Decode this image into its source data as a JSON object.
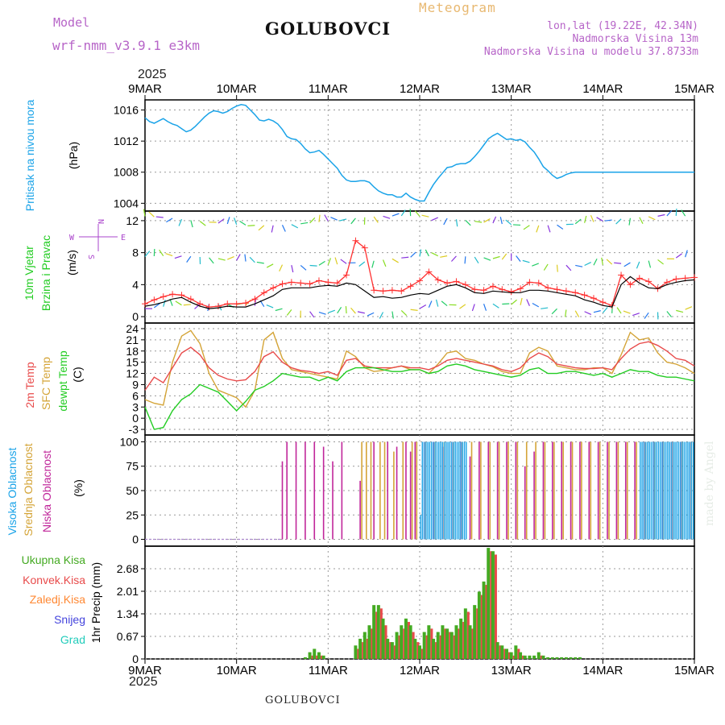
{
  "header": {
    "model_label": "Model",
    "model_name": "wrf-nmm_v3.9.1 e3km",
    "station": "GOLUBOVCI",
    "product": "Meteogram",
    "coords": "lon,lat (19.22E, 42.34N)",
    "altitude": "Nadmorska Visina 13m",
    "model_altitude": "Nadmorska Visina u modelu 37.8733m",
    "year_top": "2025",
    "year_bottom": "2025",
    "footer_station": "GOLUBOVCI",
    "credit": "made by Angel"
  },
  "colors": {
    "pressure": "#1aa3e8",
    "temp2m": "#e84a4a",
    "sfc": "#d4a437",
    "dewpt": "#22cc22",
    "wind_speed": "#000000",
    "gust": "#ff3030",
    "high_cloud": "#1aa3e8",
    "mid_cloud": "#d4a437",
    "low_cloud": "#c0269a",
    "precip_total": "#44aa22",
    "precip_conv": "#e84a4a",
    "precip_frz": "#ff8833",
    "precip_snow": "#4444dd",
    "precip_grad": "#22ccbb",
    "wind_label_color": "#22cc22",
    "compass_color": "#aa44cc"
  },
  "chart_data": [
    {
      "type": "line",
      "id": "pressure",
      "ylabel_lines": [
        "Pritisak na nivou mora",
        "(hPa)"
      ],
      "x_label": "day",
      "x": [
        0,
        0.05,
        0.1,
        0.15,
        0.2,
        0.25,
        0.3,
        0.35,
        0.4,
        0.45,
        0.5,
        0.55,
        0.6,
        0.65,
        0.7,
        0.75,
        0.8,
        0.85,
        0.9,
        0.95,
        1.0,
        1.05,
        1.1,
        1.15,
        1.2,
        1.25,
        1.3,
        1.35,
        1.4,
        1.45,
        1.5,
        1.55,
        1.6,
        1.65,
        1.7,
        1.75,
        1.8,
        1.85,
        1.9,
        1.95,
        2.0,
        2.05,
        2.1,
        2.15,
        2.2,
        2.25,
        2.3,
        2.35,
        2.4,
        2.45,
        2.5,
        2.55,
        2.6,
        2.65,
        2.7,
        2.75,
        2.8,
        2.85,
        2.9,
        2.95,
        3.0,
        3.05,
        3.1,
        3.15,
        3.2,
        3.25,
        3.3,
        3.35,
        3.4,
        3.45,
        3.5,
        3.55,
        3.6,
        3.65,
        3.7,
        3.75,
        3.8,
        3.85,
        3.9,
        3.95,
        4.0,
        4.05,
        4.1,
        4.15,
        4.2,
        4.25,
        4.3,
        4.35,
        4.4,
        4.45,
        4.5,
        4.55,
        4.6,
        4.65,
        4.7,
        4.75,
        4.8,
        4.85,
        4.9,
        4.95,
        5.0,
        5.05,
        5.1,
        5.15,
        5.2,
        5.25,
        5.3,
        5.35,
        5.4,
        5.45,
        5.5,
        5.55,
        5.6,
        5.65,
        5.7,
        5.75,
        5.8,
        5.85,
        5.9,
        5.95,
        6.0
      ],
      "values": [
        1015.0,
        1014.5,
        1014.3,
        1014.6,
        1014.9,
        1014.5,
        1014.2,
        1014.0,
        1013.6,
        1013.2,
        1013.4,
        1013.9,
        1014.5,
        1015.1,
        1015.6,
        1015.9,
        1015.8,
        1015.6,
        1015.8,
        1016.2,
        1016.5,
        1016.7,
        1016.6,
        1016.0,
        1015.4,
        1014.7,
        1014.6,
        1014.8,
        1014.6,
        1014.2,
        1013.5,
        1012.6,
        1012.3,
        1012.2,
        1011.7,
        1011.0,
        1010.5,
        1010.6,
        1010.8,
        1010.3,
        1009.7,
        1009.1,
        1008.5,
        1007.6,
        1007.0,
        1006.8,
        1006.8,
        1006.9,
        1006.9,
        1006.7,
        1006.1,
        1005.6,
        1005.3,
        1005.1,
        1005.1,
        1004.8,
        1004.8,
        1005.3,
        1004.8,
        1004.5,
        1004.3,
        1004.3,
        1005.4,
        1006.4,
        1007.2,
        1007.9,
        1008.6,
        1008.7,
        1009.0,
        1009.1,
        1009.1,
        1009.4,
        1010.0,
        1010.7,
        1011.5,
        1012.3,
        1012.7,
        1013.0,
        1012.6,
        1012.2,
        1012.3,
        1012.1,
        1012.2,
        1011.9,
        1011.2,
        1010.6,
        1009.7,
        1008.7,
        1008.2,
        1007.6,
        1007.2,
        1007.4,
        1007.7,
        1007.9,
        1008.0,
        1008.0,
        1008.0,
        1008.0,
        1008.0,
        1008.0,
        1008.0,
        1008.0,
        1008.0,
        1008.0,
        1008.0,
        1008.0,
        1008.0,
        1008.0,
        1008.0,
        1008.0,
        1008.0,
        1008.0,
        1008.0,
        1008.0,
        1008.0,
        1008.0,
        1008.0,
        1008.0,
        1008.0,
        1008.0,
        1008.0
      ],
      "yticks": [
        1004,
        1008,
        1012,
        1016
      ],
      "ylim": [
        1003.0,
        1017.3
      ]
    },
    {
      "type": "line",
      "id": "wind",
      "ylabel_lines": [
        "10m Vjetar",
        "Brzina i Pravac",
        "(m/s)"
      ],
      "compass": [
        "N",
        "E",
        "S",
        "W"
      ],
      "speed_x": [
        0,
        0.1,
        0.2,
        0.3,
        0.4,
        0.5,
        0.6,
        0.7,
        0.8,
        0.9,
        1.0,
        1.1,
        1.2,
        1.3,
        1.4,
        1.5,
        1.6,
        1.7,
        1.8,
        1.9,
        2.0,
        2.1,
        2.2,
        2.3,
        2.4,
        2.5,
        2.6,
        2.7,
        2.8,
        2.9,
        3.0,
        3.1,
        3.2,
        3.3,
        3.4,
        3.5,
        3.6,
        3.7,
        3.8,
        3.9,
        4.0,
        4.1,
        4.2,
        4.3,
        4.4,
        4.5,
        4.6,
        4.7,
        4.8,
        4.9,
        5.0,
        5.1,
        5.2,
        5.3,
        5.4,
        5.5,
        5.6,
        5.7,
        5.8,
        5.9,
        6.0
      ],
      "speed_values": [
        1.3,
        1.5,
        1.8,
        2.2,
        2.4,
        1.8,
        1.3,
        1.0,
        1.1,
        1.3,
        1.2,
        1.2,
        1.6,
        2.1,
        2.6,
        3.4,
        3.6,
        3.6,
        3.6,
        3.8,
        3.9,
        3.8,
        4.2,
        4.0,
        3.2,
        2.4,
        2.5,
        2.3,
        2.4,
        2.7,
        2.9,
        2.8,
        3.3,
        3.8,
        4.0,
        3.6,
        3.0,
        2.9,
        3.2,
        3.1,
        3.0,
        3.0,
        3.3,
        3.3,
        3.2,
        3.0,
        2.8,
        2.6,
        2.1,
        1.8,
        1.4,
        1.2,
        4.0,
        5.0,
        4.2,
        3.6,
        3.5,
        4.0,
        4.3,
        4.5,
        4.6
      ],
      "gust_values": [
        1.6,
        2.1,
        2.5,
        2.8,
        2.7,
        2.2,
        1.6,
        1.2,
        1.3,
        1.6,
        1.6,
        1.7,
        2.2,
        3.0,
        3.6,
        4.1,
        4.3,
        4.2,
        4.1,
        4.5,
        4.3,
        4.2,
        5.2,
        9.5,
        8.6,
        3.3,
        3.2,
        3.3,
        3.2,
        3.8,
        4.5,
        5.6,
        4.6,
        4.2,
        4.4,
        4.0,
        3.4,
        3.3,
        3.8,
        3.4,
        3.1,
        3.5,
        4.3,
        4.2,
        3.6,
        3.4,
        3.2,
        3.0,
        2.7,
        2.3,
        1.8,
        1.4,
        5.2,
        4.0,
        4.8,
        4.4,
        3.5,
        4.3,
        4.7,
        4.8,
        4.9
      ],
      "yticks": [
        0,
        4,
        8,
        12
      ],
      "ylim": [
        -0.8,
        13.2
      ]
    },
    {
      "type": "line",
      "id": "temperature",
      "ylabel_lines": [
        "2m Temp",
        "SFC Temp",
        "dewpt Temp",
        "(C)"
      ],
      "x": [
        0,
        0.1,
        0.2,
        0.3,
        0.4,
        0.5,
        0.6,
        0.7,
        0.8,
        0.9,
        1.0,
        1.1,
        1.2,
        1.3,
        1.4,
        1.5,
        1.6,
        1.7,
        1.8,
        1.9,
        2.0,
        2.1,
        2.2,
        2.3,
        2.4,
        2.5,
        2.6,
        2.7,
        2.8,
        2.9,
        3.0,
        3.1,
        3.2,
        3.3,
        3.4,
        3.5,
        3.6,
        3.7,
        3.8,
        3.9,
        4.0,
        4.1,
        4.2,
        4.3,
        4.4,
        4.5,
        4.6,
        4.7,
        4.8,
        4.9,
        5.0,
        5.1,
        5.2,
        5.3,
        5.4,
        5.5,
        5.6,
        5.7,
        5.8,
        5.9,
        6.0
      ],
      "temp2m": [
        7.5,
        11.0,
        9.5,
        13.5,
        17.5,
        19.0,
        17.0,
        13.5,
        11.5,
        10.5,
        10.0,
        10.3,
        12.5,
        16.5,
        17.8,
        15.0,
        13.5,
        12.8,
        12.5,
        12.0,
        12.5,
        11.5,
        15.5,
        16.0,
        14.0,
        13.5,
        13.5,
        13.5,
        14.0,
        13.5,
        13.5,
        13.0,
        14.0,
        15.5,
        16.0,
        15.5,
        15.0,
        14.5,
        14.0,
        13.0,
        12.5,
        13.5,
        16.0,
        17.5,
        16.5,
        14.5,
        14.0,
        13.5,
        13.3,
        13.3,
        13.5,
        13.0,
        16.0,
        18.5,
        20.0,
        20.5,
        19.5,
        18.0,
        16.0,
        15.5,
        14.0
      ],
      "sfc_temp": [
        5.0,
        4.0,
        3.5,
        15.0,
        22.0,
        23.5,
        20.0,
        12.0,
        7.5,
        6.5,
        5.5,
        3.0,
        7.5,
        21.0,
        23.0,
        16.0,
        13.0,
        12.5,
        12.0,
        11.5,
        11.0,
        10.5,
        18.0,
        16.5,
        13.5,
        12.5,
        12.8,
        13.5,
        14.0,
        13.0,
        13.0,
        12.0,
        14.5,
        17.5,
        18.0,
        16.0,
        15.5,
        14.5,
        13.8,
        12.5,
        12.0,
        12.0,
        17.5,
        19.0,
        18.0,
        14.0,
        13.5,
        13.0,
        13.0,
        13.5,
        13.5,
        12.0,
        17.0,
        23.0,
        21.0,
        21.5,
        17.5,
        15.0,
        14.5,
        13.5,
        12.0
      ],
      "dewpt": [
        3.0,
        -3.0,
        -2.5,
        2.0,
        5.0,
        6.5,
        9.0,
        8.0,
        7.0,
        4.5,
        2.0,
        4.5,
        7.5,
        8.5,
        10.0,
        12.0,
        11.5,
        11.0,
        11.0,
        10.0,
        11.0,
        10.0,
        12.5,
        13.5,
        13.5,
        13.5,
        13.0,
        12.5,
        12.5,
        13.0,
        13.0,
        12.0,
        12.5,
        14.0,
        14.5,
        14.0,
        13.0,
        12.5,
        12.0,
        11.5,
        11.0,
        11.5,
        13.0,
        13.5,
        12.0,
        12.0,
        12.5,
        12.5,
        12.0,
        11.5,
        12.0,
        11.0,
        12.0,
        13.0,
        12.5,
        12.5,
        11.5,
        11.0,
        11.0,
        10.5,
        10.0
      ],
      "yticks": [
        -3,
        0,
        3,
        6,
        9,
        12,
        15,
        18,
        21,
        24
      ],
      "ylim": [
        -4.5,
        25.5
      ]
    },
    {
      "type": "bar",
      "id": "cloud",
      "ylabel_lines": [
        "Visoka Oblacnost",
        "Srednja Oblacnost",
        "Niska Oblacnost",
        "(%)"
      ],
      "low_x": [
        1.5,
        1.55,
        1.65,
        1.75,
        1.85,
        1.95,
        2.05,
        2.15,
        2.35,
        2.5,
        2.65,
        2.75,
        2.85,
        2.9,
        2.95,
        3.05,
        3.15,
        3.25,
        3.35,
        3.45,
        3.55,
        3.65,
        3.75,
        3.85,
        3.95,
        4.05,
        4.15,
        4.25,
        4.35,
        4.45,
        4.55,
        4.65,
        4.75,
        4.85,
        4.95,
        5.05,
        5.15,
        5.25,
        5.35,
        5.45,
        5.55,
        5.65,
        5.75,
        5.85,
        5.95
      ],
      "low_values": [
        80,
        100,
        100,
        100,
        100,
        95,
        80,
        100,
        60,
        100,
        100,
        95,
        100,
        90,
        100,
        100,
        100,
        95,
        100,
        100,
        85,
        100,
        100,
        100,
        100,
        100,
        75,
        90,
        100,
        100,
        100,
        100,
        100,
        100,
        100,
        100,
        100,
        100,
        100,
        100,
        100,
        100,
        100,
        100,
        100
      ],
      "mid_x": [
        2.35,
        2.4,
        2.45,
        2.55,
        2.6,
        2.7,
        2.8,
        2.9,
        2.95,
        3.05,
        3.15,
        3.25,
        3.35,
        3.45,
        3.55,
        3.65,
        3.75,
        3.85,
        3.95,
        4.05,
        4.15,
        4.25,
        4.35,
        4.45,
        4.55,
        4.65,
        4.75,
        4.85,
        4.95,
        5.05,
        5.15,
        5.25,
        5.35,
        5.45,
        5.55,
        5.65,
        5.75,
        5.85,
        5.95
      ],
      "mid_values": [
        100,
        100,
        100,
        100,
        100,
        90,
        100,
        100,
        100,
        100,
        100,
        100,
        100,
        100,
        100,
        100,
        100,
        100,
        100,
        100,
        100,
        100,
        100,
        100,
        100,
        100,
        100,
        100,
        100,
        100,
        100,
        100,
        100,
        100,
        100,
        100,
        100,
        100,
        100
      ],
      "high_x": [
        3.0,
        3.02,
        3.04,
        3.06,
        3.08,
        3.1,
        3.12,
        3.14,
        3.16,
        3.18,
        3.2,
        3.22,
        3.24,
        3.26,
        3.28,
        3.3,
        3.32,
        3.34,
        3.36,
        3.38,
        3.4,
        3.42,
        3.44,
        3.46,
        3.48,
        3.5,
        5.4,
        5.42,
        5.44,
        5.46,
        5.48,
        5.5,
        5.52,
        5.54,
        5.56,
        5.58,
        5.6,
        5.62,
        5.64,
        5.66,
        5.68,
        5.7,
        5.72,
        5.74,
        5.76,
        5.78,
        5.8,
        5.82,
        5.84,
        5.86,
        5.88,
        5.9,
        5.92,
        5.94,
        5.96,
        5.98
      ],
      "high_values": [
        25,
        100,
        100,
        100,
        100,
        100,
        100,
        100,
        100,
        100,
        100,
        100,
        100,
        100,
        100,
        100,
        100,
        100,
        100,
        100,
        100,
        100,
        100,
        100,
        100,
        100,
        100,
        100,
        100,
        100,
        100,
        100,
        100,
        100,
        100,
        100,
        100,
        100,
        100,
        100,
        100,
        100,
        100,
        100,
        100,
        100,
        100,
        100,
        100,
        100,
        100,
        100,
        100,
        100,
        100,
        100
      ],
      "yticks": [
        0,
        25,
        50,
        75,
        100
      ],
      "ylim": [
        -7.0,
        107.0
      ]
    },
    {
      "type": "bar",
      "id": "precip",
      "ylabel_lines": [
        "1hr Precip (mm)"
      ],
      "legend": [
        "Ukupna Kisa",
        "Konvek.Kisa",
        "Zaledj.Kisa",
        "Snijeg",
        "Grad"
      ],
      "x": [
        1.75,
        1.8,
        1.85,
        1.9,
        1.95,
        2.3,
        2.35,
        2.4,
        2.45,
        2.5,
        2.55,
        2.6,
        2.65,
        2.7,
        2.75,
        2.8,
        2.85,
        2.9,
        2.95,
        3.0,
        3.05,
        3.1,
        3.15,
        3.2,
        3.25,
        3.3,
        3.35,
        3.4,
        3.45,
        3.5,
        3.55,
        3.6,
        3.65,
        3.7,
        3.75,
        3.8,
        3.85,
        3.9,
        3.95,
        4.0,
        4.05,
        4.1,
        4.15,
        4.2,
        4.25,
        4.3,
        4.35,
        4.4,
        4.45,
        4.5,
        4.55,
        4.6,
        4.65,
        4.7,
        4.75
      ],
      "totals": [
        0.05,
        0.2,
        0.3,
        0.2,
        0.1,
        0.4,
        0.6,
        0.8,
        1.0,
        1.6,
        1.6,
        1.2,
        0.6,
        0.5,
        0.8,
        1.0,
        1.2,
        1.0,
        0.6,
        0.4,
        0.8,
        1.0,
        0.6,
        0.8,
        1.0,
        0.9,
        0.8,
        1.0,
        1.2,
        1.5,
        1.0,
        1.6,
        2.0,
        2.3,
        3.3,
        3.2,
        0.5,
        0.4,
        0.3,
        0.2,
        0.4,
        0.2,
        0.1,
        0.1,
        0.1,
        0.2,
        0.1,
        0.05,
        0.05,
        0.05,
        0.05,
        0.05,
        0.05,
        0.05,
        0.05
      ],
      "convective": [
        0.0,
        0.1,
        0.1,
        0.1,
        0.0,
        0.3,
        0.5,
        0.6,
        0.9,
        1.4,
        1.5,
        1.0,
        0.5,
        0.4,
        0.7,
        0.9,
        1.1,
        0.8,
        0.5,
        0.3,
        0.7,
        0.9,
        0.5,
        0.7,
        0.9,
        0.8,
        0.7,
        0.9,
        1.1,
        1.4,
        0.9,
        1.5,
        1.9,
        2.2,
        3.2,
        3.1,
        0.4,
        0.3,
        0.2,
        0.1,
        0.3,
        0.1,
        0.0,
        0.0,
        0.0,
        0.1,
        0.0,
        0.0,
        0.0,
        0.0,
        0.0,
        0.0,
        0.0,
        0.0,
        0.0
      ],
      "yticks": [
        0,
        0.67,
        1.34,
        2.01,
        2.68
      ],
      "ylim": [
        0.0,
        3.35
      ]
    }
  ],
  "x_axis": {
    "days": [
      "9MAR",
      "10MAR",
      "11MAR",
      "12MAR",
      "13MAR",
      "14MAR",
      "15MAR"
    ]
  }
}
